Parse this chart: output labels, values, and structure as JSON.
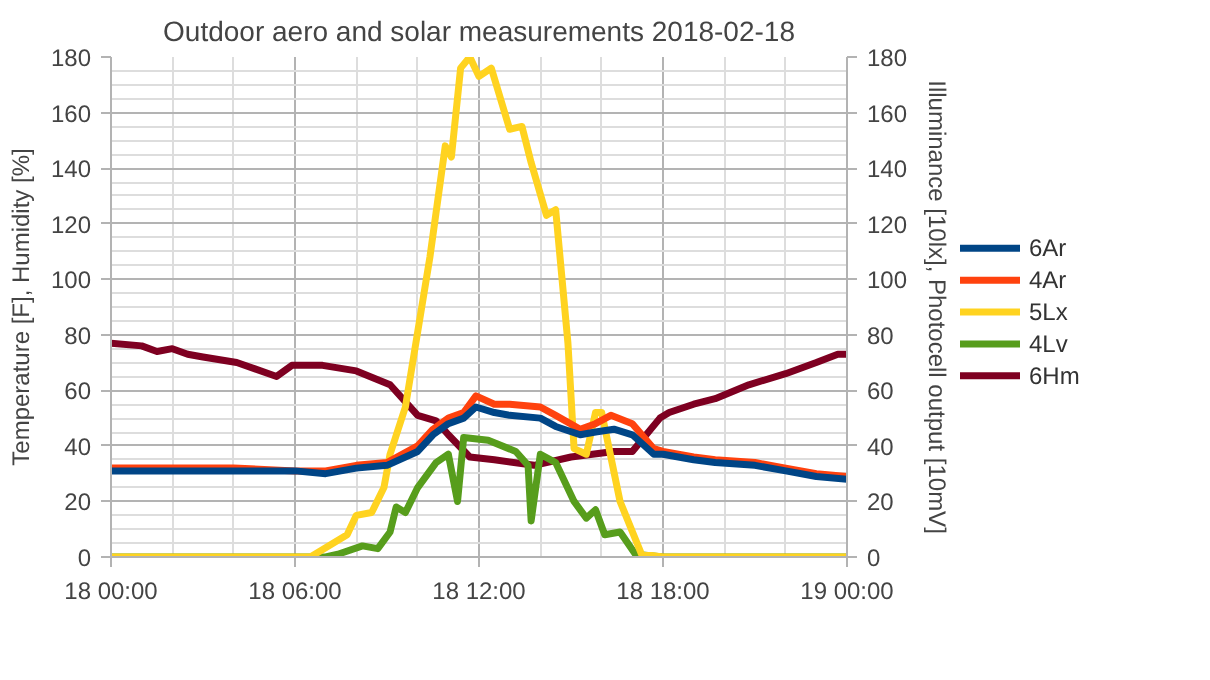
{
  "chart_data": {
    "type": "line",
    "title": "Outdoor aero and solar measurements 2018-02-18",
    "ylabel": "Temperature [F], Humidity [%]",
    "y2label": "Illuminance [10lx], Photocell output [10mV]",
    "xlim": [
      "2018-02-18T00:00",
      "2018-02-19T00:00"
    ],
    "xticks": [
      {
        "value": "2018-02-18T00:00",
        "label": "18 00:00"
      },
      {
        "value": "2018-02-18T06:00",
        "label": "18 06:00"
      },
      {
        "value": "2018-02-18T12:00",
        "label": "18 12:00"
      },
      {
        "value": "2018-02-18T18:00",
        "label": "18 18:00"
      },
      {
        "value": "2018-02-19T00:00",
        "label": "19 00:00"
      }
    ],
    "ylim": [
      0,
      180
    ],
    "yticks": [
      0,
      20,
      40,
      60,
      80,
      100,
      120,
      140,
      160,
      180
    ],
    "y2lim": [
      0,
      180
    ],
    "y2ticks": [
      0,
      20,
      40,
      60,
      80,
      100,
      120,
      140,
      160,
      180
    ],
    "grid": true,
    "legend": "right",
    "line_style": "solid",
    "marker": "none",
    "series": [
      {
        "name": "6Ar",
        "color": "#004586",
        "x": [
          "2018-02-18T00:00",
          "2018-02-18T02:00",
          "2018-02-18T04:00",
          "2018-02-18T06:00",
          "2018-02-18T07:00",
          "2018-02-18T08:00",
          "2018-02-18T09:00",
          "2018-02-18T10:00",
          "2018-02-18T10:30",
          "2018-02-18T11:00",
          "2018-02-18T11:30",
          "2018-02-18T11:54",
          "2018-02-18T12:30",
          "2018-02-18T13:00",
          "2018-02-18T14:00",
          "2018-02-18T14:30",
          "2018-02-18T15:18",
          "2018-02-18T15:48",
          "2018-02-18T16:24",
          "2018-02-18T17:00",
          "2018-02-18T17:42",
          "2018-02-18T18:00",
          "2018-02-18T19:00",
          "2018-02-18T19:42",
          "2018-02-18T21:00",
          "2018-02-18T22:00",
          "2018-02-18T23:00",
          "2018-02-19T00:00"
        ],
        "values": [
          31,
          31,
          31,
          31,
          30,
          32,
          33,
          38,
          44,
          48,
          50,
          54,
          52,
          51,
          50,
          47,
          44,
          45,
          46,
          44,
          37,
          37,
          35,
          34,
          33,
          31,
          29,
          28
        ]
      },
      {
        "name": "4Ar",
        "color": "#ff420e",
        "x": [
          "2018-02-18T00:00",
          "2018-02-18T02:00",
          "2018-02-18T04:00",
          "2018-02-18T06:00",
          "2018-02-18T07:00",
          "2018-02-18T08:00",
          "2018-02-18T09:00",
          "2018-02-18T10:00",
          "2018-02-18T10:30",
          "2018-02-18T11:00",
          "2018-02-18T11:30",
          "2018-02-18T11:54",
          "2018-02-18T12:30",
          "2018-02-18T13:00",
          "2018-02-18T14:00",
          "2018-02-18T14:30",
          "2018-02-18T15:18",
          "2018-02-18T15:48",
          "2018-02-18T16:18",
          "2018-02-18T17:00",
          "2018-02-18T17:42",
          "2018-02-18T18:00",
          "2018-02-18T19:00",
          "2018-02-18T19:42",
          "2018-02-18T21:00",
          "2018-02-18T22:00",
          "2018-02-18T23:00",
          "2018-02-19T00:00"
        ],
        "values": [
          32,
          32,
          32,
          31,
          31,
          33,
          34,
          40,
          46,
          50,
          52,
          58,
          55,
          55,
          54,
          51,
          46,
          48,
          51,
          48,
          39,
          38,
          36,
          35,
          34,
          32,
          30,
          29
        ]
      },
      {
        "name": "5Lx",
        "color": "#ffd320",
        "x": [
          "2018-02-18T00:00",
          "2018-02-18T06:30",
          "2018-02-18T07:42",
          "2018-02-18T08:00",
          "2018-02-18T08:30",
          "2018-02-18T08:54",
          "2018-02-18T09:06",
          "2018-02-18T09:36",
          "2018-02-18T10:24",
          "2018-02-18T10:54",
          "2018-02-18T11:06",
          "2018-02-18T11:24",
          "2018-02-18T11:42",
          "2018-02-18T12:00",
          "2018-02-18T12:24",
          "2018-02-18T13:00",
          "2018-02-18T13:24",
          "2018-02-18T13:42",
          "2018-02-18T14:12",
          "2018-02-18T14:30",
          "2018-02-18T14:54",
          "2018-02-18T15:06",
          "2018-02-18T15:30",
          "2018-02-18T15:48",
          "2018-02-18T16:00",
          "2018-02-18T16:36",
          "2018-02-18T17:18",
          "2018-02-18T18:00",
          "2018-02-19T00:00"
        ],
        "values": [
          0,
          0,
          8,
          15,
          16,
          25,
          37,
          54,
          108,
          148,
          144,
          176,
          180,
          173,
          176,
          154,
          155,
          142,
          123,
          125,
          77,
          39,
          37,
          52,
          52,
          20,
          1,
          0,
          0
        ]
      },
      {
        "name": "4Lv",
        "color": "#579d1c",
        "x": [
          "2018-02-18T00:00",
          "2018-02-18T07:00",
          "2018-02-18T07:24",
          "2018-02-18T08:12",
          "2018-02-18T08:42",
          "2018-02-18T09:06",
          "2018-02-18T09:18",
          "2018-02-18T09:36",
          "2018-02-18T10:00",
          "2018-02-18T10:36",
          "2018-02-18T11:00",
          "2018-02-18T11:18",
          "2018-02-18T11:30",
          "2018-02-18T12:18",
          "2018-02-18T13:12",
          "2018-02-18T13:36",
          "2018-02-18T13:42",
          "2018-02-18T14:00",
          "2018-02-18T14:30",
          "2018-02-18T15:06",
          "2018-02-18T15:30",
          "2018-02-18T15:48",
          "2018-02-18T16:06",
          "2018-02-18T16:36",
          "2018-02-18T17:06",
          "2018-02-18T18:00",
          "2018-02-19T00:00"
        ],
        "values": [
          0,
          0,
          1,
          4,
          3,
          9,
          18,
          16,
          25,
          34,
          37,
          20,
          43,
          42,
          38,
          33,
          13,
          37,
          34,
          20,
          14,
          17,
          8,
          9,
          1,
          0,
          0
        ]
      },
      {
        "name": "6Hm",
        "color": "#7e0021",
        "x": [
          "2018-02-18T00:00",
          "2018-02-18T01:00",
          "2018-02-18T01:30",
          "2018-02-18T02:00",
          "2018-02-18T02:30",
          "2018-02-18T03:00",
          "2018-02-18T04:06",
          "2018-02-18T05:24",
          "2018-02-18T05:54",
          "2018-02-18T06:54",
          "2018-02-18T08:00",
          "2018-02-18T09:06",
          "2018-02-18T10:00",
          "2018-02-18T10:36",
          "2018-02-18T11:00",
          "2018-02-18T11:42",
          "2018-02-18T12:30",
          "2018-02-18T13:48",
          "2018-02-18T15:00",
          "2018-02-18T16:24",
          "2018-02-18T17:00",
          "2018-02-18T17:54",
          "2018-02-18T18:12",
          "2018-02-18T19:00",
          "2018-02-18T19:42",
          "2018-02-18T20:48",
          "2018-02-18T22:00",
          "2018-02-18T23:00",
          "2018-02-18T23:42",
          "2018-02-19T00:00"
        ],
        "values": [
          77,
          76,
          74,
          75,
          73,
          72,
          70,
          65,
          69,
          69,
          67,
          62,
          51,
          49,
          44,
          36,
          35,
          33,
          36,
          38,
          38,
          50,
          52,
          55,
          57,
          62,
          66,
          70,
          73,
          73
        ]
      }
    ]
  }
}
